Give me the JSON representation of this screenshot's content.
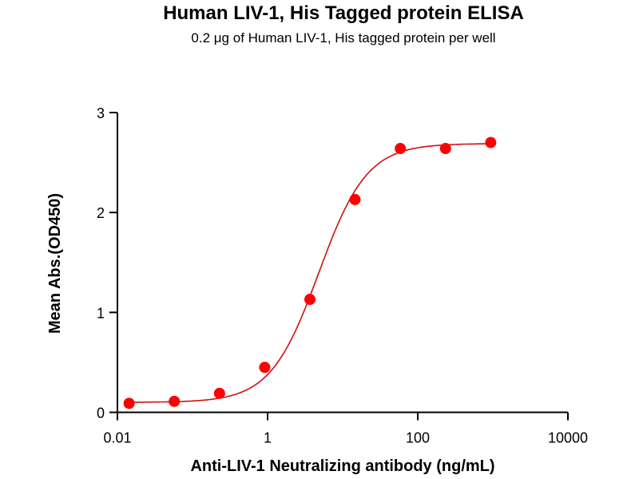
{
  "chart_data": {
    "type": "scatter",
    "title": "Human LIV-1, His Tagged protein ELISA",
    "subtitle": "0.2 μg of Human LIV-1, His tagged protein per well",
    "xlabel": "Anti-LIV-1 Neutralizing antibody (ng/mL)",
    "ylabel": "Mean Abs.(OD450)",
    "xscale": "log",
    "xlim": [
      0.01,
      10000
    ],
    "ylim": [
      0,
      3
    ],
    "xticks": [
      "0.01",
      "1",
      "100",
      "10000"
    ],
    "xtick_values": [
      0.01,
      1,
      100,
      10000
    ],
    "yticks": [
      "0",
      "1",
      "2",
      "3"
    ],
    "ytick_values": [
      0,
      1,
      2,
      3
    ],
    "grid": false,
    "color": "#ff0000",
    "curve_color": "#d01010",
    "fit": "4PL sigmoidal",
    "fit_params": {
      "bottom": 0.1,
      "top": 2.69,
      "ec50": 4.8,
      "hill": 1.35
    },
    "x": [
      0.0143,
      0.0572,
      0.229,
      0.916,
      3.66,
      14.6,
      58.6,
      234.4,
      937.5
    ],
    "y": [
      0.09,
      0.11,
      0.19,
      0.45,
      1.13,
      2.13,
      2.64,
      2.64,
      2.7
    ]
  }
}
